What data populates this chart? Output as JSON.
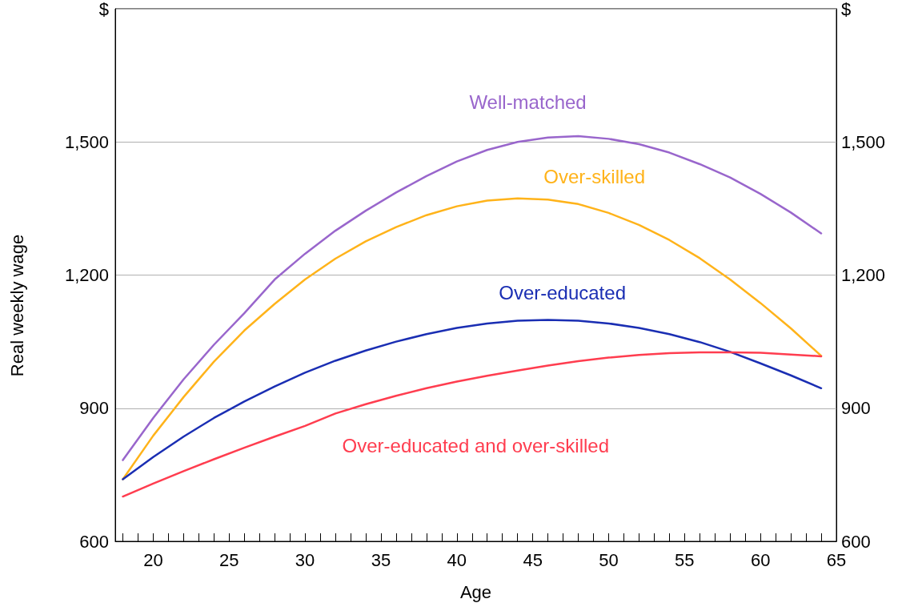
{
  "chart_data": {
    "type": "line",
    "xlabel": "Age",
    "ylabel": "Real weekly wage",
    "x": [
      18,
      20,
      22,
      24,
      26,
      28,
      30,
      32,
      34,
      36,
      38,
      40,
      42,
      44,
      46,
      48,
      50,
      52,
      54,
      56,
      58,
      60,
      62,
      64
    ],
    "series": [
      {
        "name": "Well-matched",
        "color": "#9966cc",
        "values": [
          783,
          878,
          965,
          1043,
          1114,
          1190,
          1248,
          1300,
          1345,
          1386,
          1423,
          1456,
          1482,
          1500,
          1510,
          1513,
          1507,
          1495,
          1476,
          1450,
          1420,
          1383,
          1341,
          1294
        ]
      },
      {
        "name": "Over-skilled",
        "color": "#ffb31a",
        "values": [
          740,
          838,
          925,
          1005,
          1075,
          1135,
          1190,
          1237,
          1276,
          1308,
          1335,
          1355,
          1368,
          1373,
          1370,
          1360,
          1340,
          1313,
          1279,
          1238,
          1190,
          1137,
          1080,
          1018
        ]
      },
      {
        "name": "Over-educated",
        "color": "#1a2eb3",
        "values": [
          740,
          790,
          836,
          878,
          915,
          949,
          980,
          1007,
          1030,
          1050,
          1067,
          1081,
          1091,
          1097,
          1099,
          1097,
          1091,
          1081,
          1067,
          1049,
          1027,
          1001,
          974,
          945
        ]
      },
      {
        "name": "Over-educated and over-skilled",
        "color": "#ff3d4f",
        "values": [
          701,
          730,
          758,
          785,
          811,
          836,
          860,
          888,
          909,
          928,
          945,
          960,
          973,
          985,
          996,
          1006,
          1014,
          1020,
          1024,
          1026,
          1026,
          1025,
          1021,
          1017
        ]
      }
    ],
    "xlim": [
      17.5,
      65
    ],
    "xticks": [
      {
        "value": 18,
        "label": null
      },
      {
        "value": 19,
        "label": null
      },
      20,
      {
        "value": 21,
        "label": null
      },
      {
        "value": 22,
        "label": null
      },
      {
        "value": 23,
        "label": null
      },
      {
        "value": 24,
        "label": null
      },
      25,
      {
        "value": 26,
        "label": null
      },
      {
        "value": 27,
        "label": null
      },
      {
        "value": 28,
        "label": null
      },
      {
        "value": 29,
        "label": null
      },
      30,
      {
        "value": 31,
        "label": null
      },
      {
        "value": 32,
        "label": null
      },
      {
        "value": 33,
        "label": null
      },
      {
        "value": 34,
        "label": null
      },
      35,
      {
        "value": 36,
        "label": null
      },
      {
        "value": 37,
        "label": null
      },
      {
        "value": 38,
        "label": null
      },
      {
        "value": 39,
        "label": null
      },
      40,
      {
        "value": 41,
        "label": null
      },
      {
        "value": 42,
        "label": null
      },
      {
        "value": 43,
        "label": null
      },
      {
        "value": 44,
        "label": null
      },
      45,
      {
        "value": 46,
        "label": null
      },
      {
        "value": 47,
        "label": null
      },
      {
        "value": 48,
        "label": null
      },
      {
        "value": 49,
        "label": null
      },
      50,
      {
        "value": 51,
        "label": null
      },
      {
        "value": 52,
        "label": null
      },
      {
        "value": 53,
        "label": null
      },
      {
        "value": 54,
        "label": null
      },
      55,
      {
        "value": 56,
        "label": null
      },
      {
        "value": 57,
        "label": null
      },
      {
        "value": 58,
        "label": null
      },
      {
        "value": 59,
        "label": null
      },
      60,
      {
        "value": 61,
        "label": null
      },
      {
        "value": 62,
        "label": null
      },
      {
        "value": 63,
        "label": null
      },
      {
        "value": 64,
        "label": null
      },
      65
    ],
    "ylim": [
      600,
      1800
    ],
    "yticks": [
      600,
      900,
      {
        "value": 1200,
        "label": "1,200"
      },
      {
        "value": 1500,
        "label": "1,500"
      },
      {
        "value": 1800,
        "label": "$"
      }
    ],
    "y2lim": [
      600,
      1800
    ],
    "y2ticks": [
      600,
      900,
      {
        "value": 1200,
        "label": "1,200"
      },
      {
        "value": 1500,
        "label": "1,500"
      },
      {
        "value": 1800,
        "label": "$"
      }
    ],
    "grid": "y",
    "legend": false,
    "marker": "none",
    "line_style": "solid"
  }
}
